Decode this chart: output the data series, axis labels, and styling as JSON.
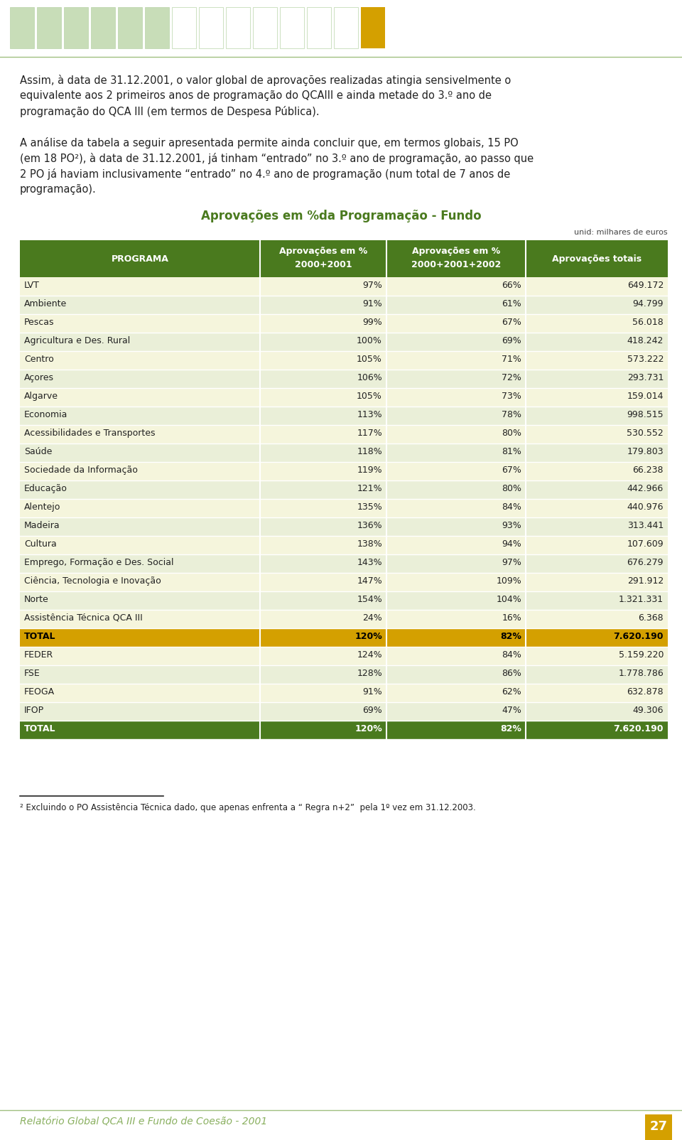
{
  "title": "Aprovações em %da Programação - Fundo",
  "unit_label": "unid: milhares de euros",
  "col_headers": [
    "PROGRAMA",
    "Aprovações em %\n2000+2001",
    "Aprovações em %\n2000+2001+2002",
    "Aprovações totais"
  ],
  "rows": [
    [
      "LVT",
      "97%",
      "66%",
      "649.172"
    ],
    [
      "Ambiente",
      "91%",
      "61%",
      "94.799"
    ],
    [
      "Pescas",
      "99%",
      "67%",
      "56.018"
    ],
    [
      "Agricultura e Des. Rural",
      "100%",
      "69%",
      "418.242"
    ],
    [
      "Centro",
      "105%",
      "71%",
      "573.222"
    ],
    [
      "Açores",
      "106%",
      "72%",
      "293.731"
    ],
    [
      "Algarve",
      "105%",
      "73%",
      "159.014"
    ],
    [
      "Economia",
      "113%",
      "78%",
      "998.515"
    ],
    [
      "Acessibilidades e Transportes",
      "117%",
      "80%",
      "530.552"
    ],
    [
      "Saúde",
      "118%",
      "81%",
      "179.803"
    ],
    [
      "Sociedade da Informação",
      "119%",
      "67%",
      "66.238"
    ],
    [
      "Educação",
      "121%",
      "80%",
      "442.966"
    ],
    [
      "Alentejo",
      "135%",
      "84%",
      "440.976"
    ],
    [
      "Madeira",
      "136%",
      "93%",
      "313.441"
    ],
    [
      "Cultura",
      "138%",
      "94%",
      "107.609"
    ],
    [
      "Emprego, Formação e Des. Social",
      "143%",
      "97%",
      "676.279"
    ],
    [
      "Ciência, Tecnologia e Inovação",
      "147%",
      "109%",
      "291.912"
    ],
    [
      "Norte",
      "154%",
      "104%",
      "1.321.331"
    ],
    [
      "Assistência Técnica QCA III",
      "24%",
      "16%",
      "6.368"
    ]
  ],
  "total_row1": [
    "TOTAL",
    "120%",
    "82%",
    "7.620.190"
  ],
  "sub_rows": [
    [
      "FEDER",
      "124%",
      "84%",
      "5.159.220"
    ],
    [
      "FSE",
      "128%",
      "86%",
      "1.778.786"
    ],
    [
      "FEOGA",
      "91%",
      "62%",
      "632.878"
    ],
    [
      "IFOP",
      "69%",
      "47%",
      "49.306"
    ]
  ],
  "total_row2": [
    "TOTAL",
    "120%",
    "82%",
    "7.620.190"
  ],
  "header_bg": "#4a7a1e",
  "header_fg": "#ffffff",
  "total1_bg": "#d4a000",
  "total1_fg": "#000000",
  "total2_bg": "#4a7a1e",
  "total2_fg": "#ffffff",
  "title_color": "#4a7a1e",
  "footer_text": "² Excluindo o PO Assistência Técnica dado, que apenas enfrenta a “ Regra n+2”  pela 1º vez em 31.12.2003.",
  "bottom_text": "Relatório Global QCA III e Fundo de Coesão - 2001",
  "page_number": "27",
  "header_squares_green": 6,
  "header_squares_white": 7,
  "body_text_lines": [
    "Assim, à data de 31.12.2001, o valor global de aprovações realizadas atingia sensivelmente o",
    "equivalente aos 2 primeiros anos de programação do QCAIII e ainda metade do 3.º ano de",
    "programação do QCA III (em termos de Despesa Pública).",
    "",
    "A análise da tabela a seguir apresentada permite ainda concluir que, em termos globais, 15 PO",
    "(em 18 PO²), à data de 31.12.2001, já tinham “entrado” no 3.º ano de programação, ao passo que",
    "2 PO já haviam inclusivamente “entrado” no 4.º ano de programação (num total de 7 anos de",
    "programação)."
  ]
}
